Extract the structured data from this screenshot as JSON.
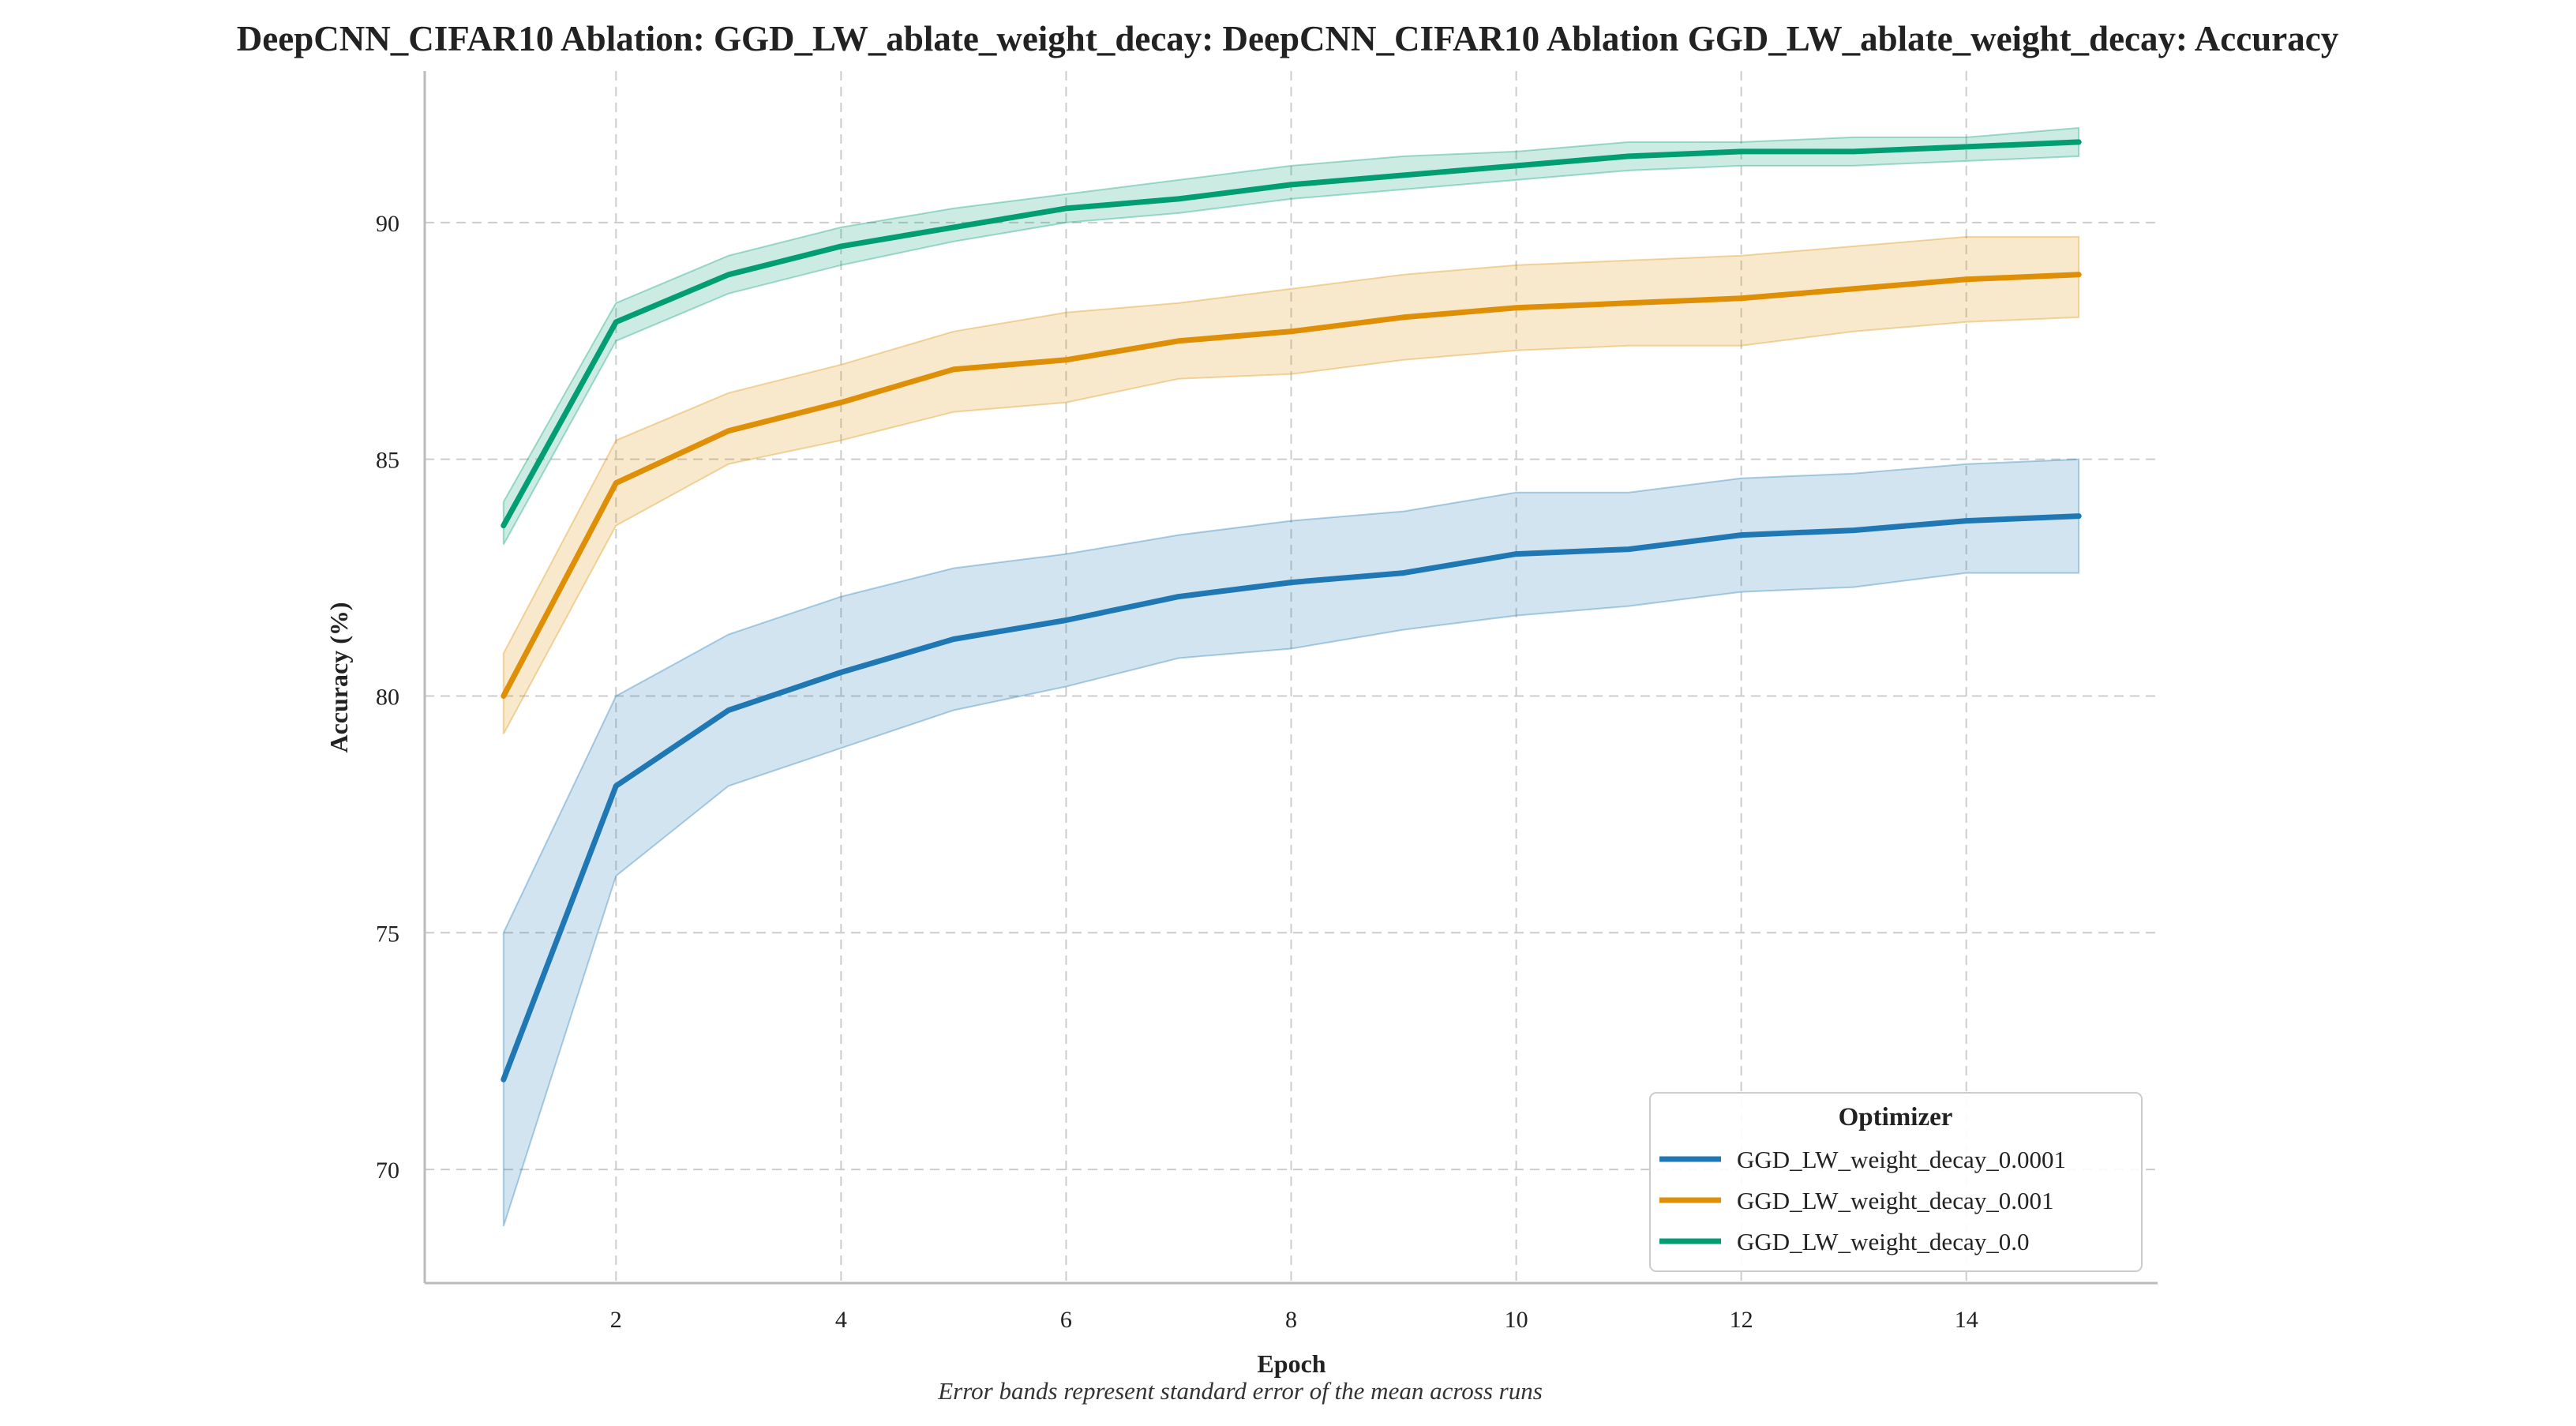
{
  "chart_data": {
    "type": "line",
    "title": "DeepCNN_CIFAR10 Ablation: GGD_LW_ablate_weight_decay: DeepCNN_CIFAR10 Ablation GGD_LW_ablate_weight_decay: Accuracy",
    "xlabel": "Epoch",
    "ylabel": "Accuracy (%)",
    "caption": "Error bands represent standard error of the mean across runs",
    "xlim": [
      0.3,
      15.7
    ],
    "ylim": [
      67.6,
      93.2
    ],
    "x_ticks": [
      2,
      4,
      6,
      8,
      10,
      12,
      14
    ],
    "y_ticks": [
      70,
      75,
      80,
      85,
      90
    ],
    "grid": true,
    "legend": {
      "title": "Optimizer",
      "position": "bottom-right"
    },
    "x": [
      1,
      2,
      3,
      4,
      5,
      6,
      7,
      8,
      9,
      10,
      11,
      12,
      13,
      14,
      15
    ],
    "series": [
      {
        "name": "GGD_LW_weight_decay_0.0001",
        "color": "#1f77b4",
        "values": [
          71.9,
          78.1,
          79.7,
          80.5,
          81.2,
          81.6,
          82.1,
          82.4,
          82.6,
          83.0,
          83.1,
          83.4,
          83.5,
          83.7,
          83.8
        ],
        "lower": [
          68.8,
          76.2,
          78.1,
          78.9,
          79.7,
          80.2,
          80.8,
          81.0,
          81.4,
          81.7,
          81.9,
          82.2,
          82.3,
          82.6,
          82.6
        ],
        "upper": [
          75.0,
          80.0,
          81.3,
          82.1,
          82.7,
          83.0,
          83.4,
          83.7,
          83.9,
          84.3,
          84.3,
          84.6,
          84.7,
          84.9,
          85.0
        ]
      },
      {
        "name": "GGD_LW_weight_decay_0.001",
        "color": "#de8f05",
        "values": [
          80.0,
          84.5,
          85.6,
          86.2,
          86.9,
          87.1,
          87.5,
          87.7,
          88.0,
          88.2,
          88.3,
          88.4,
          88.6,
          88.8,
          88.9
        ],
        "lower": [
          79.2,
          83.6,
          84.9,
          85.4,
          86.0,
          86.2,
          86.7,
          86.8,
          87.1,
          87.3,
          87.4,
          87.4,
          87.7,
          87.9,
          88.0
        ],
        "upper": [
          80.9,
          85.4,
          86.4,
          87.0,
          87.7,
          88.1,
          88.3,
          88.6,
          88.9,
          89.1,
          89.2,
          89.3,
          89.5,
          89.7,
          89.7
        ]
      },
      {
        "name": "GGD_LW_weight_decay_0.0",
        "color": "#029e73",
        "values": [
          83.6,
          87.9,
          88.9,
          89.5,
          89.9,
          90.3,
          90.5,
          90.8,
          91.0,
          91.2,
          91.4,
          91.5,
          91.5,
          91.6,
          91.7
        ],
        "lower": [
          83.2,
          87.5,
          88.5,
          89.1,
          89.6,
          90.0,
          90.2,
          90.5,
          90.7,
          90.9,
          91.1,
          91.2,
          91.2,
          91.3,
          91.4
        ],
        "upper": [
          84.1,
          88.3,
          89.3,
          89.9,
          90.3,
          90.6,
          90.9,
          91.2,
          91.4,
          91.5,
          91.7,
          91.7,
          91.8,
          91.8,
          92.0
        ]
      }
    ]
  }
}
